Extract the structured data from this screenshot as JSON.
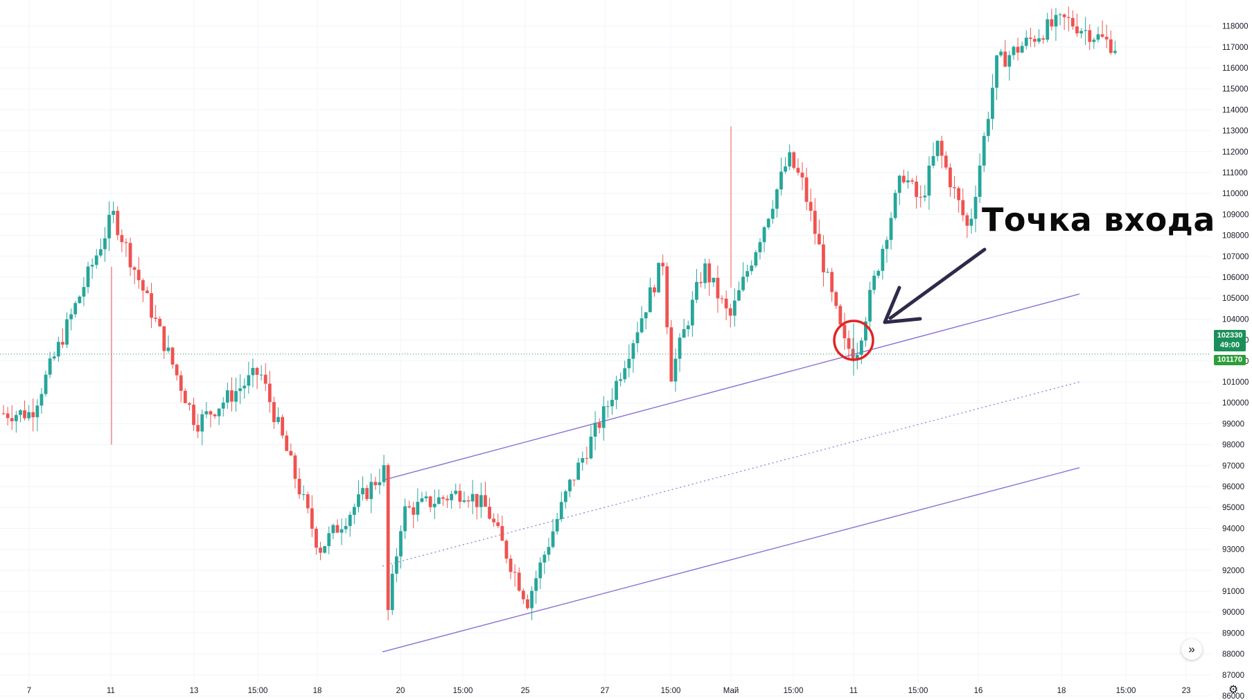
{
  "annotation": "Точка входа",
  "price_tags": {
    "current": "102330",
    "countdown": "49:00",
    "secondary": "101170"
  },
  "colors": {
    "up": "#26a69a",
    "down": "#ef5350",
    "channel": "#8b6fd6",
    "arrow": "#2f2a4a",
    "circle": "#e02424",
    "last_price_line": "#1b8f5a",
    "grid": "#f0f3fa"
  },
  "icons": [
    "scroll-right-icon",
    "settings-gear-icon"
  ],
  "chart_data": {
    "type": "candlestick",
    "y_axis": {
      "min": 86000,
      "max": 118000,
      "step": 1000,
      "tick_labels": [
        "86000",
        "87000",
        "88000",
        "89000",
        "90000",
        "91000",
        "92000",
        "93000",
        "94000",
        "95000",
        "96000",
        "97000",
        "98000",
        "99000",
        "100000",
        "101000",
        "102000",
        "103000",
        "104000",
        "105000",
        "106000",
        "107000",
        "108000",
        "109000",
        "110000",
        "111000",
        "112000",
        "113000",
        "114000",
        "115000",
        "116000",
        "117000",
        "118000"
      ]
    },
    "x_axis": {
      "tick_labels": [
        "7",
        "11",
        "13",
        "15:00",
        "18",
        "20",
        "15:00",
        "25",
        "27",
        "15:00",
        "Май",
        "15:00",
        "11",
        "15:00",
        "16",
        "18",
        "15:00",
        "23"
      ]
    },
    "grid": true,
    "channel_lines": [
      {
        "style": "solid",
        "from": {
          "candle": 0,
          "price": 96300
        },
        "to": {
          "candle": 99,
          "price": 105200
        }
      },
      {
        "style": "dotted",
        "from": {
          "candle": 0,
          "price": 92200
        },
        "to": {
          "candle": 99,
          "price": 101000
        }
      },
      {
        "style": "solid",
        "from": {
          "candle": 0,
          "price": 88100
        },
        "to": {
          "candle": 99,
          "price": 96900
        }
      }
    ],
    "last_price": 102330,
    "anchors": [
      {
        "label": "7",
        "price": 99500
      },
      {
        "label": "11",
        "price": 109000
      },
      {
        "label": "13",
        "price": 99000
      },
      {
        "label": "15:00",
        "price": 101500
      },
      {
        "label": "18",
        "price": 93000
      },
      {
        "label": "",
        "price": 96800
      },
      {
        "label": "",
        "price": 92600
      },
      {
        "label": "",
        "price": 88400
      },
      {
        "label": "20",
        "price": 94800
      },
      {
        "label": "15:00",
        "price": 95800
      },
      {
        "label": "",
        "price": 94900
      },
      {
        "label": "25",
        "price": 90500
      },
      {
        "label": "",
        "price": 96000
      },
      {
        "label": "27",
        "price": 99800
      },
      {
        "label": "",
        "price": 106800
      },
      {
        "label": "15:00",
        "price": 101300
      },
      {
        "label": "",
        "price": 106500
      },
      {
        "label": "Май",
        "price": 104000
      },
      {
        "label": "",
        "price": 111700
      },
      {
        "label": "15:00",
        "price": 110500
      },
      {
        "label": "",
        "price": 102800
      },
      {
        "label": "11",
        "price": 102330
      },
      {
        "label": "",
        "price": 108000
      },
      {
        "label": "",
        "price": 111000
      },
      {
        "label": "15:00",
        "price": 109500
      },
      {
        "label": "",
        "price": 112300
      },
      {
        "label": "16",
        "price": 108200
      },
      {
        "label": "",
        "price": 116200
      },
      {
        "label": "18",
        "price": 117900
      },
      {
        "label": "",
        "price": 118300
      },
      {
        "label": "15:00",
        "price": 116700
      }
    ]
  }
}
